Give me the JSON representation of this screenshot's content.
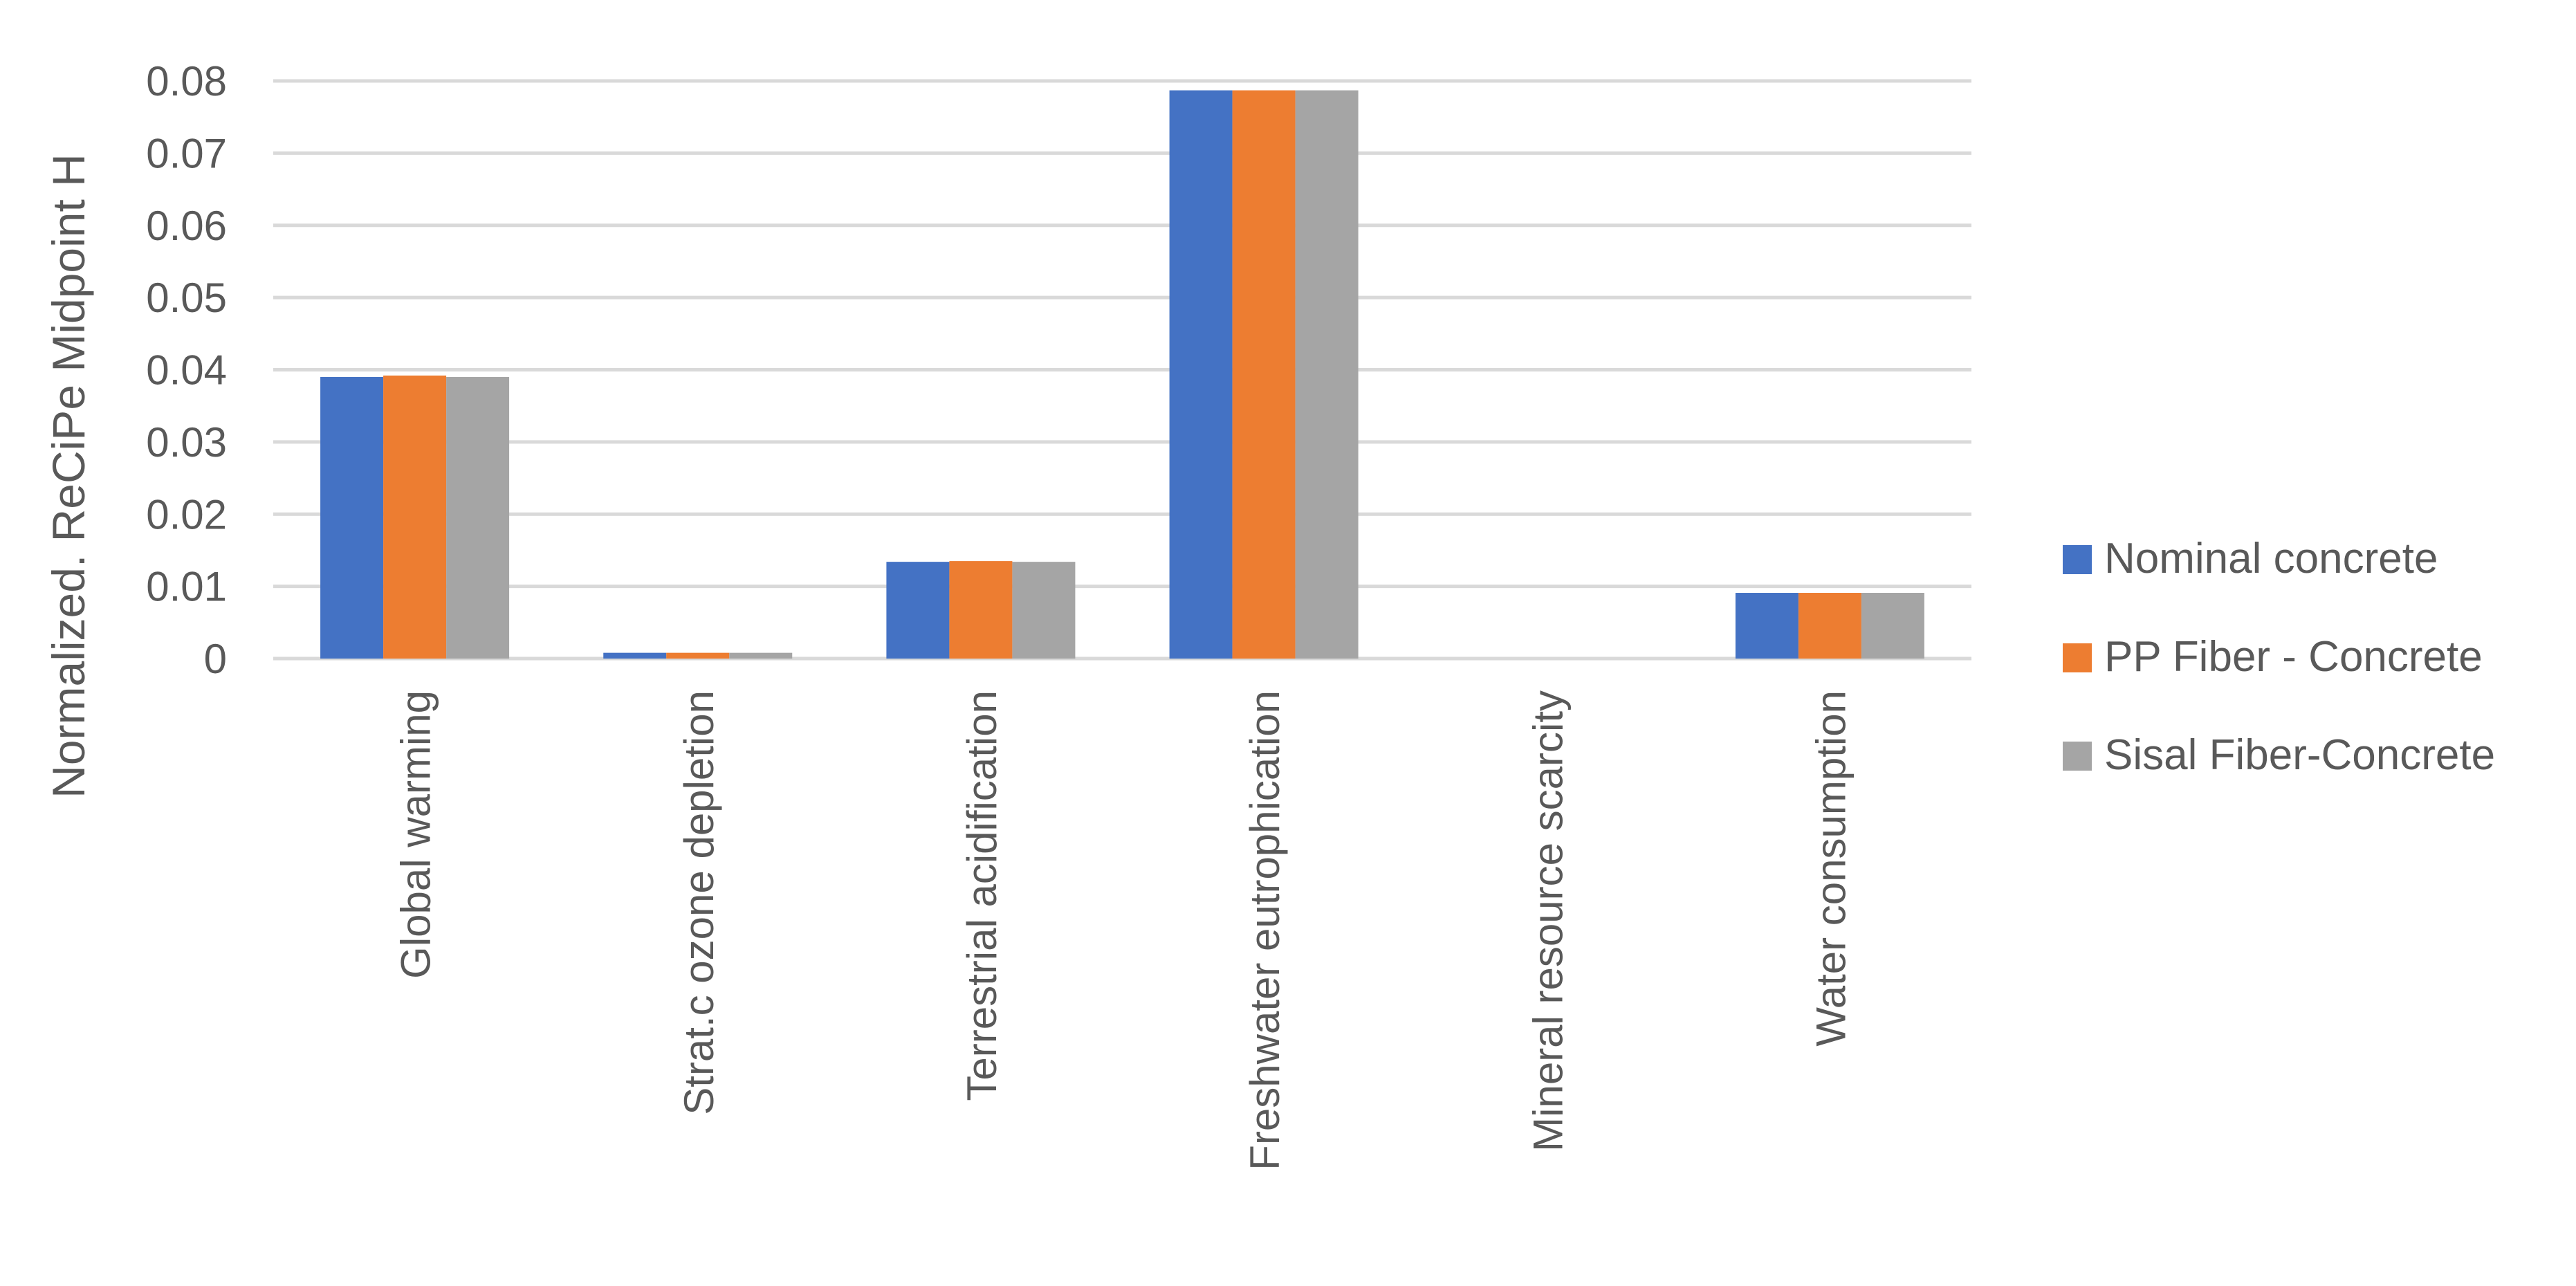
{
  "chart_data": {
    "type": "bar",
    "title": "",
    "xlabel": "",
    "ylabel": "Normalized. ReCiPe Midpoint H",
    "ylim": [
      0,
      0.08
    ],
    "yticks": [
      "0",
      "0.01",
      "0.02",
      "0.03",
      "0.04",
      "0.05",
      "0.06",
      "0.07",
      "0.08"
    ],
    "grid": true,
    "legend_position": "right",
    "categories": [
      "Global warming",
      "Strat.c ozone depletion",
      "Terrestrial acidification",
      "Freshwater eutrophication",
      "Mineral resource scarcity",
      "Water consumption"
    ],
    "series": [
      {
        "name": "Nominal concrete",
        "color": "#4472c4",
        "values": [
          0.039,
          0.0008,
          0.0134,
          0.0787,
          0,
          0.0091
        ]
      },
      {
        "name": "PP Fiber - Concrete",
        "color": "#ed7d31",
        "values": [
          0.0392,
          0.0008,
          0.0135,
          0.0787,
          0,
          0.0091
        ]
      },
      {
        "name": "Sisal Fiber-Concrete",
        "color": "#a5a5a5",
        "values": [
          0.039,
          0.0008,
          0.0134,
          0.0787,
          0,
          0.0091
        ]
      }
    ]
  }
}
